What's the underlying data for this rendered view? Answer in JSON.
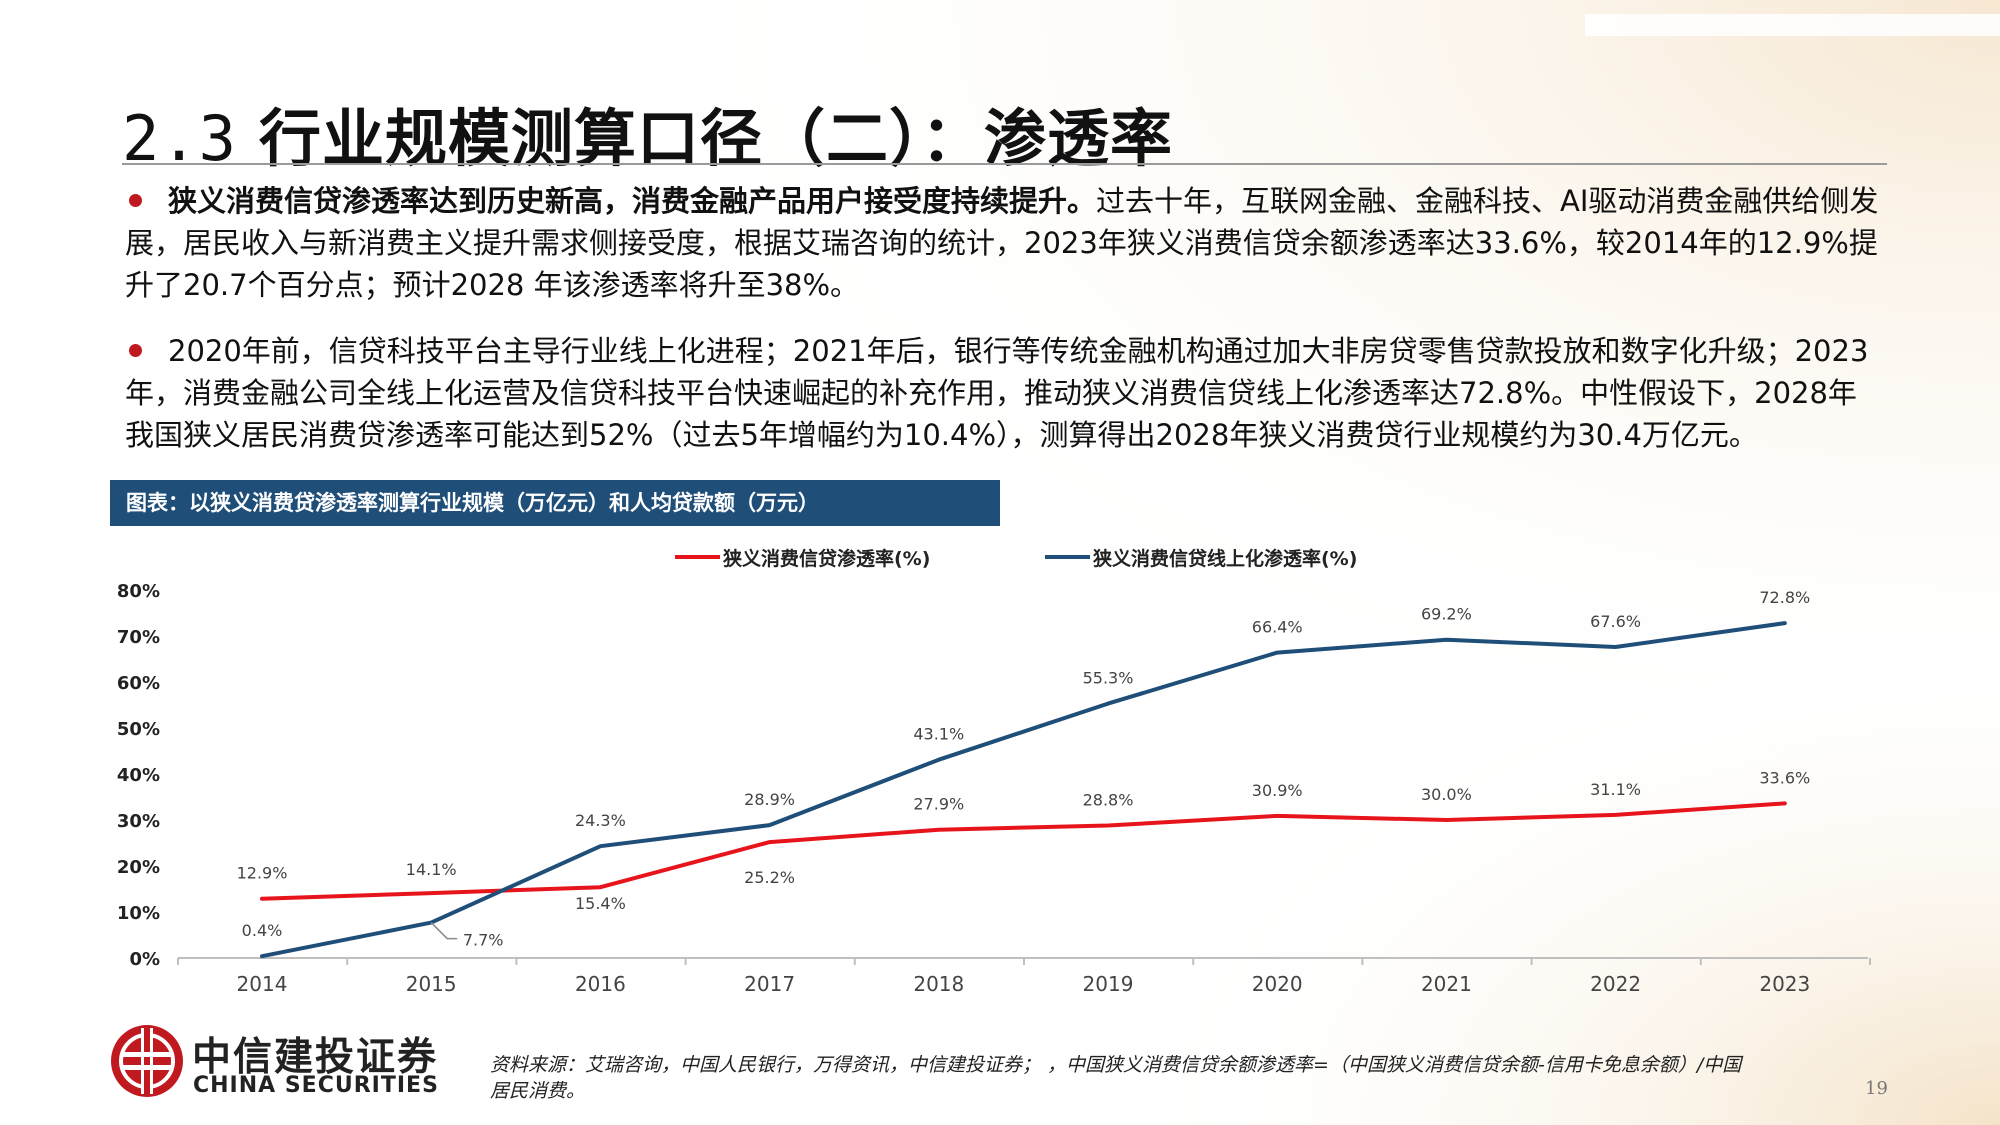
{
  "page": {
    "title_number": "2.3",
    "title_text": "行业规模测算口径（二）：渗透率",
    "page_number": "19"
  },
  "bullets": [
    {
      "bold": "狭义消费信贷渗透率达到历史新高，消费金融产品用户接受度持续提升。",
      "text": "过去十年，互联网金融、金融科技、AI驱动消费金融供给侧发展，居民收入与新消费主义提升需求侧接受度，根据艾瑞咨询的统计，2023年狭义消费信贷余额渗透率达33.6%，较2014年的12.9%提升了20.7个百分点；预计2028 年该渗透率将升至38%。"
    },
    {
      "bold": "",
      "text": "2020年前，信贷科技平台主导行业线上化进程；2021年后，银行等传统金融机构通过加大非房贷零售贷款投放和数字化升级；2023年，消费金融公司全线上化运营及信贷科技平台快速崛起的补充作用，推动狭义消费信贷线上化渗透率达72.8%。中性假设下，2028年我国狭义居民消费贷渗透率可能达到52%（过去5年增幅约为10.4%），测算得出2028年狭义消费贷行业规模约为30.4万亿元。"
    }
  ],
  "chart_header": "图表：以狭义消费贷渗透率测算行业规模（万亿元）和人均贷款额（万元）",
  "chart_data": {
    "type": "line",
    "title": "",
    "xlabel": "",
    "ylabel": "",
    "x": [
      "2014",
      "2015",
      "2016",
      "2017",
      "2018",
      "2019",
      "2020",
      "2021",
      "2022",
      "2023"
    ],
    "ylim": [
      0,
      80
    ],
    "yticks": [
      "0%",
      "10%",
      "20%",
      "30%",
      "40%",
      "50%",
      "60%",
      "70%",
      "80%"
    ],
    "grid": false,
    "legend_position": "top",
    "series": [
      {
        "name": "狭义消费信贷渗透率(%)",
        "color": "#e8141c",
        "values": [
          12.9,
          14.1,
          15.4,
          25.2,
          27.9,
          28.8,
          30.9,
          30.0,
          31.1,
          33.6
        ],
        "labels": [
          "12.9%",
          "14.1%",
          "15.4%",
          "25.2%",
          "27.9%",
          "28.8%",
          "30.9%",
          "30.0%",
          "31.1%",
          "33.6%"
        ]
      },
      {
        "name": "狭义消费信贷线上化渗透率(%)",
        "color": "#1f4e79",
        "values": [
          0.4,
          7.7,
          24.3,
          28.9,
          43.1,
          55.3,
          66.4,
          69.2,
          67.6,
          72.8
        ],
        "labels": [
          "0.4%",
          "7.7%",
          "24.3%",
          "28.9%",
          "43.1%",
          "55.3%",
          "66.4%",
          "69.2%",
          "67.6%",
          "72.8%"
        ]
      }
    ]
  },
  "footer": {
    "brand_cn": "中信建投证券",
    "brand_en": "CHINA SECURITIES",
    "source": "资料来源：艾瑞咨询，中国人民银行，万得资讯，中信建投证券； ，中国狭义消费信贷余额渗透率=（中国狭义消费信贷余额-信用卡免息余额）/中国居民消费。"
  },
  "colors": {
    "accent_red": "#c0191f",
    "header_blue": "#1f4e79"
  }
}
